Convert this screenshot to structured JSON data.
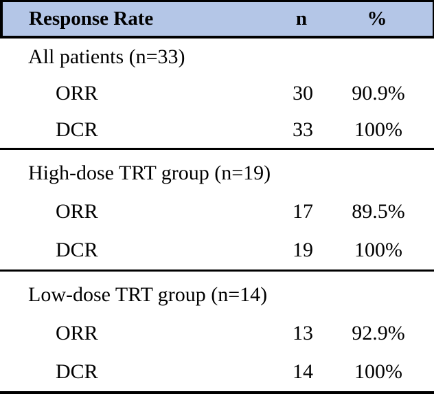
{
  "table": {
    "header": {
      "label": "Response Rate",
      "n": "n",
      "pct": "%"
    },
    "header_bg": "#b4c6e7",
    "border_color": "#000000",
    "sections": [
      {
        "group": "All patients (n=33)",
        "rows": [
          {
            "label": "ORR",
            "n": "30",
            "pct": "90.9%"
          },
          {
            "label": "DCR",
            "n": "33",
            "pct": "100%"
          }
        ]
      },
      {
        "group": "High-dose TRT group (n=19)",
        "rows": [
          {
            "label": "ORR",
            "n": "17",
            "pct": "89.5%"
          },
          {
            "label": "DCR",
            "n": "19",
            "pct": "100%"
          }
        ]
      },
      {
        "group": "Low-dose TRT group (n=14)",
        "rows": [
          {
            "label": "ORR",
            "n": "13",
            "pct": "92.9%"
          },
          {
            "label": "DCR",
            "n": "14",
            "pct": "100%"
          }
        ]
      }
    ]
  }
}
